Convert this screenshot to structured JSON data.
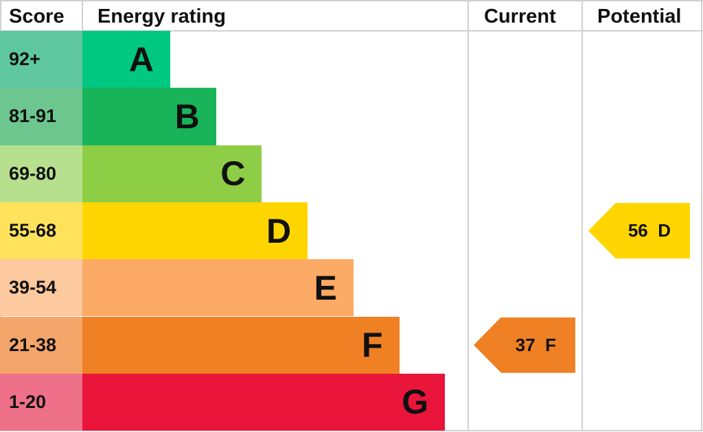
{
  "chart_data": {
    "type": "table",
    "headers": {
      "score": "Score",
      "rating": "Energy rating",
      "current": "Current",
      "potential": "Potential"
    },
    "bands": [
      {
        "letter": "A",
        "range": "92+",
        "color": "#00c781",
        "score_color": "#5fc7a2"
      },
      {
        "letter": "B",
        "range": "81-91",
        "color": "#19b459",
        "score_color": "#6cc68e"
      },
      {
        "letter": "C",
        "range": "69-80",
        "color": "#8dce46",
        "score_color": "#b6e08e"
      },
      {
        "letter": "D",
        "range": "55-68",
        "color": "#ffd500",
        "score_color": "#ffe25c"
      },
      {
        "letter": "E",
        "range": "39-54",
        "color": "#fcaa65",
        "score_color": "#fdc99e"
      },
      {
        "letter": "F",
        "range": "21-38",
        "color": "#ef8023",
        "score_color": "#f4a66a"
      },
      {
        "letter": "G",
        "range": "1-20",
        "color": "#e9153b",
        "score_color": "#ef7089"
      }
    ],
    "current": {
      "score": 37,
      "band": "F",
      "label": "37  F",
      "color": "#ef8023"
    },
    "potential": {
      "score": 56,
      "band": "D",
      "label": "56  D",
      "color": "#ffd500"
    }
  }
}
